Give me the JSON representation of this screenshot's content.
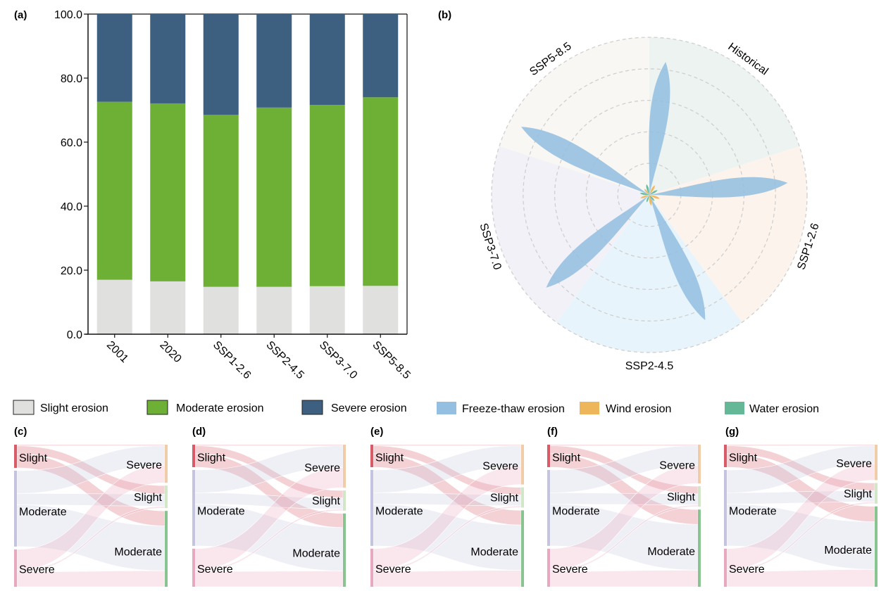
{
  "panel_labels": {
    "a": "(a)",
    "b": "(b)",
    "c": "(c)",
    "d": "(d)",
    "e": "(e)",
    "f": "(f)",
    "g": "(g)"
  },
  "legend": [
    {
      "label": "Slight erosion",
      "color": "#e0e0de"
    },
    {
      "label": "Moderate erosion",
      "color": "#6db035"
    },
    {
      "label": "Severe erosion",
      "color": "#3d5f80"
    },
    {
      "label": "Freeze-thaw erosion",
      "color": "#94bfe0"
    },
    {
      "label": "Wind erosion",
      "color": "#eeb65a"
    },
    {
      "label": "Water erosion",
      "color": "#64b898"
    }
  ],
  "chart_data": [
    {
      "id": "a",
      "type": "bar",
      "stacked": true,
      "title": "",
      "xlabel": "",
      "ylabel": "",
      "ylim": [
        0,
        100
      ],
      "yticks": [
        "0.0",
        "20.0",
        "40.0",
        "60.0",
        "80.0",
        "100.0"
      ],
      "categories": [
        "2001",
        "2020",
        "SSP1-2.6",
        "SSP2-4.5",
        "SSP3-7.0",
        "SSP5-8.5"
      ],
      "series": [
        {
          "name": "Slight erosion",
          "color": "#e0e0de",
          "values": [
            17.0,
            16.5,
            14.8,
            14.8,
            15.0,
            15.1
          ]
        },
        {
          "name": "Moderate erosion",
          "color": "#6db035",
          "values": [
            55.6,
            55.6,
            53.7,
            56.0,
            56.6,
            58.9
          ]
        },
        {
          "name": "Severe erosion",
          "color": "#3d5f80",
          "values": [
            27.4,
            27.9,
            31.5,
            29.2,
            28.4,
            26.0
          ]
        }
      ]
    },
    {
      "id": "b",
      "type": "polar",
      "title": "",
      "rings": 5,
      "sectors": [
        {
          "label": "Historical",
          "color": "#ecf3f0",
          "start_deg": 0,
          "end_deg": 72
        },
        {
          "label": "SSP1-2.6",
          "color": "#fcf3ec",
          "start_deg": 72,
          "end_deg": 144
        },
        {
          "label": "SSP2-4.5",
          "color": "#e8f4fb",
          "start_deg": 144,
          "end_deg": 216
        },
        {
          "label": "SSP3-7.0",
          "color": "#f2f1f8",
          "start_deg": 216,
          "end_deg": 288
        },
        {
          "label": "SSP5-8.5",
          "color": "#f8f7f3",
          "start_deg": 288,
          "end_deg": 360
        }
      ],
      "series": [
        {
          "name": "Freeze-thaw erosion",
          "color": "#94bfe0",
          "petals": [
            {
              "sector": "Historical",
              "angle_deg": 7,
              "value": 0.85
            },
            {
              "sector": "SSP1-2.6",
              "angle_deg": 85,
              "value": 0.88
            },
            {
              "sector": "SSP2-4.5",
              "angle_deg": 156,
              "value": 0.87
            },
            {
              "sector": "SSP3-7.0",
              "angle_deg": 228,
              "value": 0.88
            },
            {
              "sector": "SSP5-8.5",
              "angle_deg": 298,
              "value": 0.92
            }
          ]
        },
        {
          "name": "Wind erosion",
          "color": "#eeb65a",
          "petals": [
            {
              "angle_deg": 30,
              "value": 0.07
            },
            {
              "angle_deg": 110,
              "value": 0.07
            },
            {
              "angle_deg": 170,
              "value": 0.07
            },
            {
              "angle_deg": 250,
              "value": 0.06
            },
            {
              "angle_deg": 320,
              "value": 0.05
            }
          ]
        },
        {
          "name": "Water erosion",
          "color": "#64b898",
          "petals": [
            {
              "angle_deg": 60,
              "value": 0.06
            },
            {
              "angle_deg": 140,
              "value": 0.05
            },
            {
              "angle_deg": 200,
              "value": 0.05
            },
            {
              "angle_deg": 280,
              "value": 0.06
            },
            {
              "angle_deg": 345,
              "value": 0.07
            }
          ]
        }
      ]
    },
    {
      "id": "sankeys",
      "type": "sankey",
      "node_colors": {
        "left": {
          "Slight": "#d95b68",
          "Moderate": "#c4c4e0",
          "Severe": "#e8a8c0"
        },
        "right": {
          "Severe": "#f0cca8",
          "Slight": "#d2e6c8",
          "Moderate": "#88c490"
        }
      },
      "panels": [
        {
          "id": "c",
          "left": [
            {
              "label": "Slight",
              "value": 17.0
            },
            {
              "label": "Moderate",
              "value": 55.6
            },
            {
              "label": "Severe",
              "value": 27.4
            }
          ],
          "right": [
            {
              "label": "Severe",
              "value": 27.9
            },
            {
              "label": "Slight",
              "value": 16.5
            },
            {
              "label": "Moderate",
              "value": 55.6
            }
          ]
        },
        {
          "id": "d",
          "left": [
            {
              "label": "Slight",
              "value": 16.5
            },
            {
              "label": "Moderate",
              "value": 55.6
            },
            {
              "label": "Severe",
              "value": 27.9
            }
          ],
          "right": [
            {
              "label": "Severe",
              "value": 31.5
            },
            {
              "label": "Slight",
              "value": 14.8
            },
            {
              "label": "Moderate",
              "value": 53.7
            }
          ]
        },
        {
          "id": "e",
          "left": [
            {
              "label": "Slight",
              "value": 16.5
            },
            {
              "label": "Moderate",
              "value": 55.6
            },
            {
              "label": "Severe",
              "value": 27.9
            }
          ],
          "right": [
            {
              "label": "Severe",
              "value": 29.2
            },
            {
              "label": "Slight",
              "value": 14.8
            },
            {
              "label": "Moderate",
              "value": 56.0
            }
          ]
        },
        {
          "id": "f",
          "left": [
            {
              "label": "Slight",
              "value": 16.5
            },
            {
              "label": "Moderate",
              "value": 55.6
            },
            {
              "label": "Severe",
              "value": 27.9
            }
          ],
          "right": [
            {
              "label": "Severe",
              "value": 28.4
            },
            {
              "label": "Slight",
              "value": 15.0
            },
            {
              "label": "Moderate",
              "value": 56.6
            }
          ]
        },
        {
          "id": "g",
          "left": [
            {
              "label": "Slight",
              "value": 16.5
            },
            {
              "label": "Moderate",
              "value": 55.6
            },
            {
              "label": "Severe",
              "value": 27.9
            }
          ],
          "right": [
            {
              "label": "Severe",
              "value": 26.0
            },
            {
              "label": "Slight",
              "value": 15.1
            },
            {
              "label": "Moderate",
              "value": 58.9
            }
          ]
        }
      ]
    }
  ]
}
